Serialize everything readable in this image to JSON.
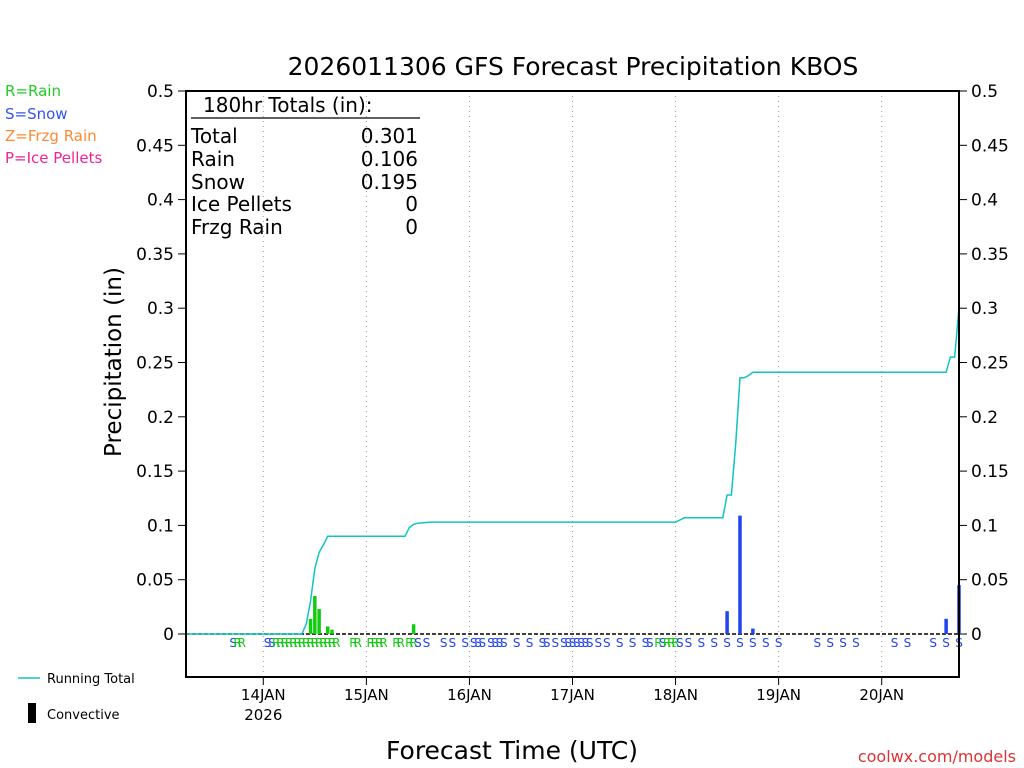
{
  "chart_data": {
    "type": "bar",
    "title": "2026011306 GFS Forecast Precipitation KBOS",
    "xlabel": "Forecast Time (UTC)",
    "ylabel": "Precipitation (in)",
    "ylim": [
      0,
      0.5
    ],
    "xlim_hours": [
      0,
      180
    ],
    "y_ticks": [
      "0",
      "0.05",
      "0.1",
      "0.15",
      "0.2",
      "0.25",
      "0.3",
      "0.35",
      "0.4",
      "0.45",
      "0.5"
    ],
    "x_ticks": [
      {
        "label": "14JAN",
        "sub": "2026",
        "hour": 18
      },
      {
        "label": "15JAN",
        "sub": "",
        "hour": 42
      },
      {
        "label": "16JAN",
        "sub": "",
        "hour": 66
      },
      {
        "label": "17JAN",
        "sub": "",
        "hour": 90
      },
      {
        "label": "18JAN",
        "sub": "",
        "hour": 114
      },
      {
        "label": "19JAN",
        "sub": "",
        "hour": 138
      },
      {
        "label": "20JAN",
        "sub": "",
        "hour": 162
      }
    ],
    "ptype_legend": [
      {
        "text": "R=Rain",
        "color": "#22cc22"
      },
      {
        "text": "S=Snow",
        "color": "#3355ee"
      },
      {
        "text": "Z=Frzg Rain",
        "color": "#ff8833"
      },
      {
        "text": "P=Ice Pellets",
        "color": "#ee2299"
      }
    ],
    "totals": {
      "header": "180hr Totals (in):",
      "rows": [
        {
          "label": "Total",
          "value": "0.301"
        },
        {
          "label": "Rain",
          "value": "0.106"
        },
        {
          "label": "Snow",
          "value": "0.195"
        },
        {
          "label": "Ice Pellets",
          "value": "0"
        },
        {
          "label": "Frzg Rain",
          "value": "0"
        }
      ]
    },
    "bars": [
      {
        "hour": 29,
        "value": 0.014,
        "type": "rain"
      },
      {
        "hour": 30,
        "value": 0.035,
        "type": "rain"
      },
      {
        "hour": 31,
        "value": 0.023,
        "type": "rain"
      },
      {
        "hour": 33,
        "value": 0.007,
        "type": "rain"
      },
      {
        "hour": 34,
        "value": 0.004,
        "type": "rain"
      },
      {
        "hour": 53,
        "value": 0.009,
        "type": "rain"
      },
      {
        "hour": 126,
        "value": 0.021,
        "type": "snow"
      },
      {
        "hour": 129,
        "value": 0.109,
        "type": "snow"
      },
      {
        "hour": 132,
        "value": 0.005,
        "type": "snow"
      },
      {
        "hour": 177,
        "value": 0.014,
        "type": "snow"
      },
      {
        "hour": 180,
        "value": 0.045,
        "type": "snow"
      }
    ],
    "running_total": {
      "hours": [
        0,
        27,
        28,
        29,
        30,
        31,
        32,
        33,
        51,
        52,
        53,
        54,
        57,
        114,
        115,
        116,
        125,
        126,
        127,
        128,
        129,
        130,
        131,
        132,
        177,
        178,
        179,
        180
      ],
      "values": [
        0,
        0,
        0.009,
        0.03,
        0.06,
        0.075,
        0.082,
        0.09,
        0.09,
        0.098,
        0.101,
        0.102,
        0.103,
        0.103,
        0.105,
        0.107,
        0.107,
        0.128,
        0.128,
        0.175,
        0.236,
        0.236,
        0.238,
        0.241,
        0.241,
        0.255,
        0.255,
        0.301
      ]
    },
    "ptype_markers": [
      {
        "hour": 11,
        "text": "S",
        "type": "snow"
      },
      {
        "hour": 12,
        "text": "R",
        "type": "rain"
      },
      {
        "hour": 13,
        "text": "R",
        "type": "rain"
      },
      {
        "hour": 19,
        "text": "S",
        "type": "snow"
      },
      {
        "hour": 20,
        "text": "S",
        "type": "snow"
      },
      {
        "hour": 21,
        "text": "R",
        "type": "rain"
      },
      {
        "hour": 22,
        "text": "R",
        "type": "rain"
      },
      {
        "hour": 23,
        "text": "R",
        "type": "rain"
      },
      {
        "hour": 24,
        "text": "R",
        "type": "rain"
      },
      {
        "hour": 25,
        "text": "R",
        "type": "rain"
      },
      {
        "hour": 26,
        "text": "R",
        "type": "rain"
      },
      {
        "hour": 27,
        "text": "R",
        "type": "rain"
      },
      {
        "hour": 28,
        "text": "R",
        "type": "rain"
      },
      {
        "hour": 29,
        "text": "R",
        "type": "rain"
      },
      {
        "hour": 30,
        "text": "R",
        "type": "rain"
      },
      {
        "hour": 31,
        "text": "R",
        "type": "rain"
      },
      {
        "hour": 32,
        "text": "R",
        "type": "rain"
      },
      {
        "hour": 33,
        "text": "R",
        "type": "rain"
      },
      {
        "hour": 34,
        "text": "R",
        "type": "rain"
      },
      {
        "hour": 35,
        "text": "R",
        "type": "rain"
      },
      {
        "hour": 39,
        "text": "R",
        "type": "rain"
      },
      {
        "hour": 40,
        "text": "R",
        "type": "rain"
      },
      {
        "hour": 43,
        "text": "R",
        "type": "rain"
      },
      {
        "hour": 44,
        "text": "R",
        "type": "rain"
      },
      {
        "hour": 45,
        "text": "R",
        "type": "rain"
      },
      {
        "hour": 46,
        "text": "R",
        "type": "rain"
      },
      {
        "hour": 49,
        "text": "R",
        "type": "rain"
      },
      {
        "hour": 50,
        "text": "R",
        "type": "rain"
      },
      {
        "hour": 52,
        "text": "R",
        "type": "rain"
      },
      {
        "hour": 53,
        "text": "R",
        "type": "rain"
      },
      {
        "hour": 54,
        "text": "S",
        "type": "snow"
      },
      {
        "hour": 56,
        "text": "S",
        "type": "snow"
      },
      {
        "hour": 60,
        "text": "S",
        "type": "snow"
      },
      {
        "hour": 62,
        "text": "S",
        "type": "snow"
      },
      {
        "hour": 65,
        "text": "S",
        "type": "snow"
      },
      {
        "hour": 67,
        "text": "S",
        "type": "snow"
      },
      {
        "hour": 68,
        "text": "S",
        "type": "snow"
      },
      {
        "hour": 69,
        "text": "S",
        "type": "snow"
      },
      {
        "hour": 71,
        "text": "S",
        "type": "snow"
      },
      {
        "hour": 72,
        "text": "S",
        "type": "snow"
      },
      {
        "hour": 73,
        "text": "S",
        "type": "snow"
      },
      {
        "hour": 74,
        "text": "S",
        "type": "snow"
      },
      {
        "hour": 77,
        "text": "S",
        "type": "snow"
      },
      {
        "hour": 80,
        "text": "S",
        "type": "snow"
      },
      {
        "hour": 83,
        "text": "S",
        "type": "snow"
      },
      {
        "hour": 84,
        "text": "S",
        "type": "snow"
      },
      {
        "hour": 86,
        "text": "S",
        "type": "snow"
      },
      {
        "hour": 88,
        "text": "S",
        "type": "snow"
      },
      {
        "hour": 89,
        "text": "S",
        "type": "snow"
      },
      {
        "hour": 90,
        "text": "S",
        "type": "snow"
      },
      {
        "hour": 91,
        "text": "S",
        "type": "snow"
      },
      {
        "hour": 92,
        "text": "S",
        "type": "snow"
      },
      {
        "hour": 93,
        "text": "S",
        "type": "snow"
      },
      {
        "hour": 94,
        "text": "S",
        "type": "snow"
      },
      {
        "hour": 96,
        "text": "S",
        "type": "snow"
      },
      {
        "hour": 98,
        "text": "S",
        "type": "snow"
      },
      {
        "hour": 101,
        "text": "S",
        "type": "snow"
      },
      {
        "hour": 104,
        "text": "S",
        "type": "snow"
      },
      {
        "hour": 107,
        "text": "S",
        "type": "snow"
      },
      {
        "hour": 108,
        "text": "S",
        "type": "snow"
      },
      {
        "hour": 110,
        "text": "R",
        "type": "rain"
      },
      {
        "hour": 111,
        "text": "S",
        "type": "snow"
      },
      {
        "hour": 112,
        "text": "R",
        "type": "rain"
      },
      {
        "hour": 113,
        "text": "R",
        "type": "rain"
      },
      {
        "hour": 114,
        "text": "R",
        "type": "rain"
      },
      {
        "hour": 115,
        "text": "S",
        "type": "snow"
      },
      {
        "hour": 117,
        "text": "S",
        "type": "snow"
      },
      {
        "hour": 120,
        "text": "S",
        "type": "snow"
      },
      {
        "hour": 123,
        "text": "S",
        "type": "snow"
      },
      {
        "hour": 126,
        "text": "S",
        "type": "snow"
      },
      {
        "hour": 129,
        "text": "S",
        "type": "snow"
      },
      {
        "hour": 132,
        "text": "S",
        "type": "snow"
      },
      {
        "hour": 135,
        "text": "S",
        "type": "snow"
      },
      {
        "hour": 138,
        "text": "S",
        "type": "snow"
      },
      {
        "hour": 147,
        "text": "S",
        "type": "snow"
      },
      {
        "hour": 150,
        "text": "S",
        "type": "snow"
      },
      {
        "hour": 153,
        "text": "S",
        "type": "snow"
      },
      {
        "hour": 156,
        "text": "S",
        "type": "snow"
      },
      {
        "hour": 165,
        "text": "S",
        "type": "snow"
      },
      {
        "hour": 168,
        "text": "S",
        "type": "snow"
      },
      {
        "hour": 174,
        "text": "S",
        "type": "snow"
      },
      {
        "hour": 177,
        "text": "S",
        "type": "snow"
      },
      {
        "hour": 180,
        "text": "S",
        "type": "snow"
      }
    ],
    "bottom_legend": {
      "line_label": "Running Total",
      "bar_label": "Convective"
    },
    "credit": "coolwx.com/models",
    "colors": {
      "rain": "#11cc11",
      "snow": "#2244ee",
      "running_total": "#11c4c4",
      "credit": "#dd3333",
      "frame": "#000000"
    }
  }
}
